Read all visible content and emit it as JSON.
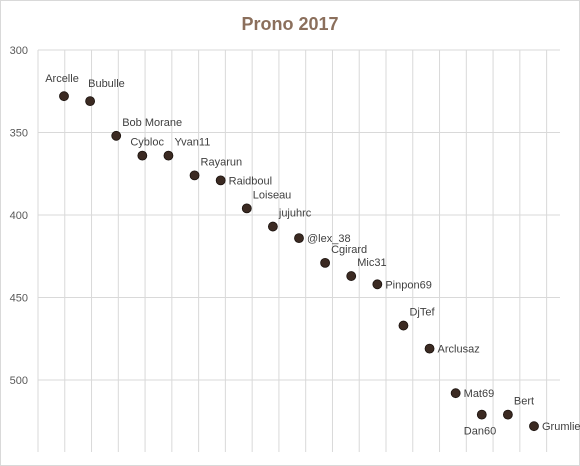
{
  "chart_data": {
    "type": "scatter",
    "title": "Prono 2017",
    "xlabel": "",
    "ylabel": "",
    "y_axis_reversed": true,
    "ylim": [
      300,
      540
    ],
    "yticks": [
      300,
      350,
      400,
      450,
      500
    ],
    "x_gridlines": 19,
    "grid": true,
    "legend": "none",
    "marker_color": "#3b2a22",
    "title_color": "#8b6f5c",
    "points": [
      {
        "label": "Arcelle",
        "y": 328,
        "label_pos": "above"
      },
      {
        "label": "Bubulle",
        "y": 331,
        "label_pos": "above-right"
      },
      {
        "label": "Bob Morane",
        "y": 352,
        "label_pos": "above-right"
      },
      {
        "label": "Cybloc",
        "y": 364,
        "label_pos": "above-left-of-next"
      },
      {
        "label": "Yvan11",
        "y": 364,
        "label_pos": "above-right"
      },
      {
        "label": "Rayarun",
        "y": 376,
        "label_pos": "above-right"
      },
      {
        "label": "Raidboul",
        "y": 379,
        "label_pos": "right"
      },
      {
        "label": "Loiseau",
        "y": 396,
        "label_pos": "above-right"
      },
      {
        "label": "jujuhrc",
        "y": 407,
        "label_pos": "above-right"
      },
      {
        "label": "@lex_38",
        "y": 414,
        "label_pos": "right"
      },
      {
        "label": "Cgirard",
        "y": 429,
        "label_pos": "above-right"
      },
      {
        "label": "Mic31",
        "y": 437,
        "label_pos": "above-right"
      },
      {
        "label": "Pinpon69",
        "y": 442,
        "label_pos": "right"
      },
      {
        "label": "DjTef",
        "y": 467,
        "label_pos": "above-right"
      },
      {
        "label": "Arclusaz",
        "y": 481,
        "label_pos": "right"
      },
      {
        "label": "Mat69",
        "y": 508,
        "label_pos": "right"
      },
      {
        "label": "Dan60",
        "y": 521,
        "label_pos": "below"
      },
      {
        "label": "Bert",
        "y": 521,
        "label_pos": "above-right"
      },
      {
        "label": "Grumlie",
        "y": 528,
        "label_pos": "right"
      }
    ]
  }
}
